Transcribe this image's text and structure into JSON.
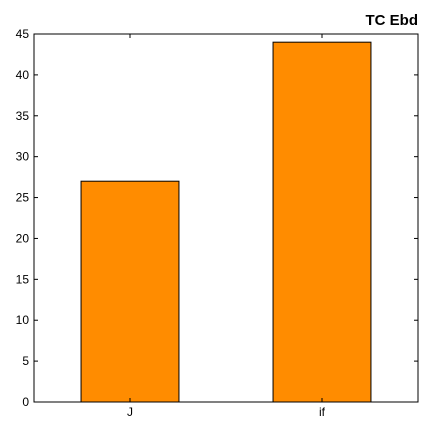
{
  "chart_data": {
    "type": "bar",
    "title": "TC Ebd",
    "categories": [
      "J",
      "if"
    ],
    "values": [
      27,
      44
    ],
    "ylim": [
      0,
      45
    ],
    "yticks": [
      0,
      5,
      10,
      15,
      20,
      25,
      30,
      35,
      40,
      45
    ],
    "bar_color": "#ff8c00",
    "grid": false
  }
}
